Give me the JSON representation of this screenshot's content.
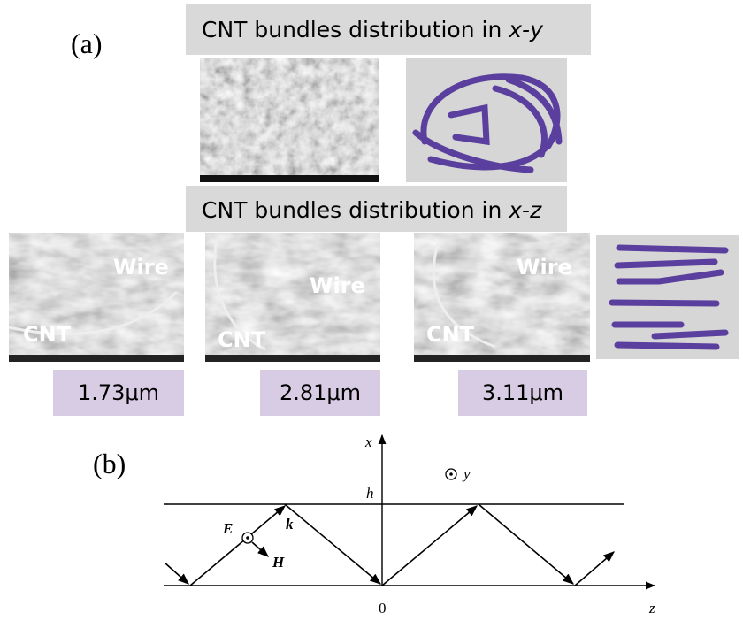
{
  "panel_a": {
    "label": "(a)",
    "xy_heading": {
      "text": "CNT bundles distribution in ",
      "axes": "x-y"
    },
    "xz_heading": {
      "text": "CNT bundles distribution in ",
      "axes": "x-z"
    },
    "sem_images": [
      {
        "wire": "Wire",
        "cnt": "CNT",
        "thickness": "1.73μm"
      },
      {
        "wire": "Wire",
        "cnt": "CNT",
        "thickness": "2.81μm"
      },
      {
        "wire": "Wire",
        "cnt": "CNT",
        "thickness": "3.11μm"
      }
    ]
  },
  "panel_b": {
    "label": "(b)",
    "axis_labels": {
      "x": "x",
      "y": "y",
      "height": "h",
      "origin": "0",
      "z": "z"
    },
    "field_labels": {
      "E": "E",
      "k": "k",
      "H": "H"
    }
  }
}
